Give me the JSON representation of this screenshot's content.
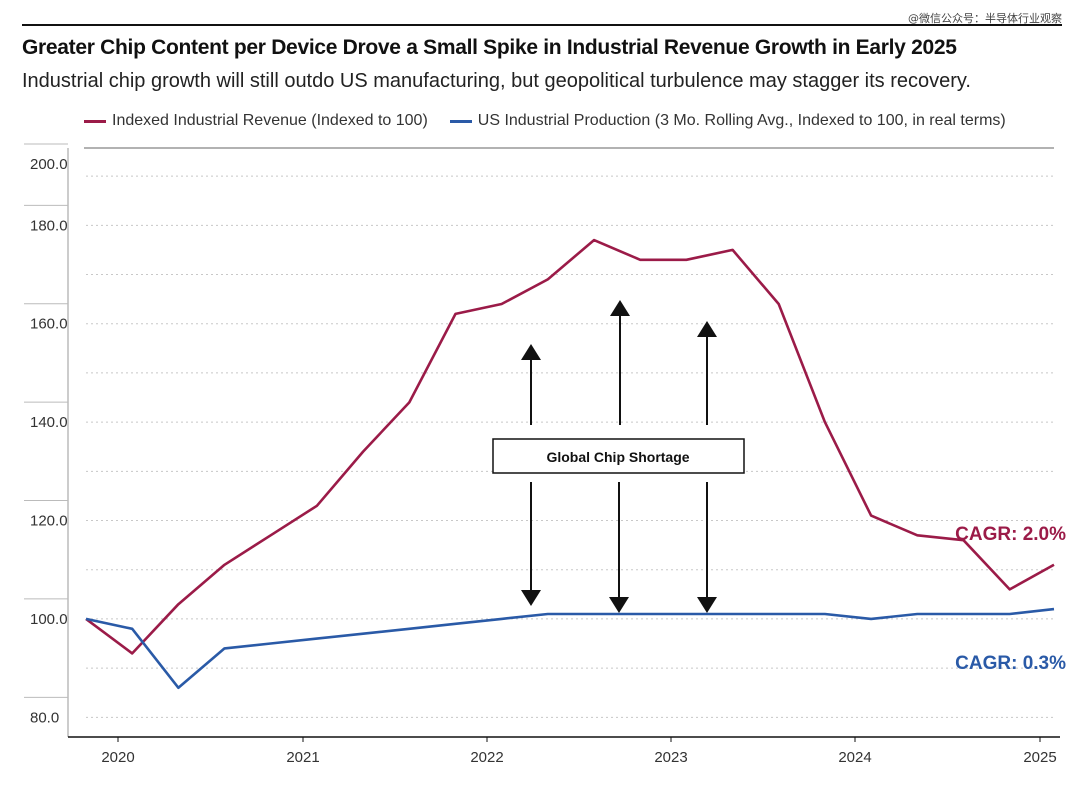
{
  "watermark": "@微信公众号：半导体行业观察",
  "chart_data": {
    "type": "line",
    "title": "Greater Chip Content per Device Drove a Small Spike in Industrial Revenue Growth in Early 2025",
    "subtitle": "Industrial chip growth will still outdo US manufacturing, but geopolitical turbulence may stagger its recovery.",
    "xlabel": "",
    "ylabel": "",
    "x_ticks": [
      "2020",
      "2021",
      "2022",
      "2023",
      "2024",
      "2025"
    ],
    "y_ticks": [
      "80.0",
      "100.0",
      "120.0",
      "140.0",
      "160.0",
      "180.0",
      "200.0"
    ],
    "ylim": [
      76,
      200
    ],
    "xlim": [
      2019.83,
      2025.07
    ],
    "grid": true,
    "legend_position": "top",
    "series": [
      {
        "name": "Indexed Industrial Revenue (Indexed to 100)",
        "color": "#9b1b48",
        "x": [
          2019.83,
          2020.08,
          2020.33,
          2020.58,
          2020.83,
          2021.08,
          2021.33,
          2021.58,
          2021.83,
          2022.08,
          2022.33,
          2022.58,
          2022.83,
          2023.08,
          2023.33,
          2023.58,
          2023.83,
          2024.08,
          2024.33,
          2024.58,
          2024.83,
          2025.07
        ],
        "values": [
          100.0,
          93.0,
          103.0,
          111.0,
          117.0,
          123.0,
          134.0,
          144.0,
          162.0,
          164.0,
          169.0,
          177.0,
          173.0,
          173.0,
          175.0,
          164.0,
          140.0,
          121.0,
          117.0,
          116.0,
          106.0,
          111.0
        ]
      },
      {
        "name": "US Industrial Production (3 Mo. Rolling Avg., Indexed to 100, in real terms)",
        "color": "#2a5aa7",
        "x": [
          2019.83,
          2020.08,
          2020.33,
          2020.58,
          2020.83,
          2021.08,
          2021.33,
          2021.58,
          2021.83,
          2022.08,
          2022.33,
          2022.58,
          2022.83,
          2023.08,
          2023.33,
          2023.58,
          2023.83,
          2024.08,
          2024.33,
          2024.58,
          2024.83,
          2025.07
        ],
        "values": [
          100.0,
          98.0,
          86.0,
          94.0,
          95.0,
          96.0,
          97.0,
          98.0,
          99.0,
          100.0,
          101.0,
          101.0,
          101.0,
          101.0,
          101.0,
          101.0,
          101.0,
          100.0,
          101.0,
          101.0,
          101.0,
          102.0
        ]
      }
    ],
    "annotations": {
      "shortage_label": "Global Chip Shortage",
      "cagr_revenue": "CAGR: 2.0%",
      "cagr_production": "CAGR: 0.3%"
    }
  }
}
